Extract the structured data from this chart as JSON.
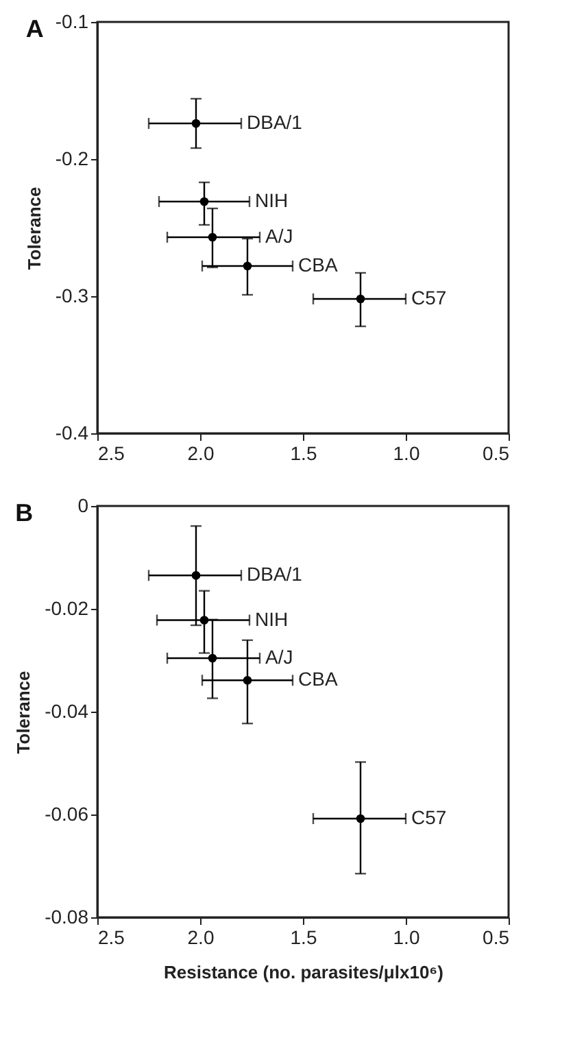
{
  "chart_data": [
    {
      "type": "scatter",
      "title": "A",
      "ylabel": "Tolerance",
      "x": [
        2.02,
        1.98,
        1.94,
        1.77,
        1.22
      ],
      "series": [
        {
          "color": "#000000",
          "values": [
            -0.174,
            -0.231,
            -0.257,
            -0.278,
            -0.302
          ],
          "errors": [
            [
              -0.192,
              -0.156
            ],
            [
              -0.248,
              -0.217
            ],
            [
              -0.279,
              -0.236
            ],
            [
              -0.299,
              -0.258
            ],
            [
              -0.322,
              -0.283
            ]
          ],
          "xerrors": [
            [
              1.8,
              2.25
            ],
            [
              1.76,
              2.2
            ],
            [
              1.71,
              2.16
            ],
            [
              1.55,
              1.99
            ],
            [
              1.0,
              1.45
            ]
          ]
        }
      ],
      "xlim": [
        2.5,
        0.5
      ],
      "xticks": [
        {
          "value": 2.5,
          "label": "2.5"
        },
        {
          "value": 2,
          "label": "2.0"
        },
        {
          "value": 1.5,
          "label": "1.5"
        },
        {
          "value": 1,
          "label": "1.0"
        },
        {
          "value": 0.5,
          "label": "0.5"
        }
      ],
      "ylim": [
        -0.4,
        -0.1
      ],
      "yticks": [
        -0.4,
        -0.3,
        -0.2,
        -0.1
      ],
      "grid": false,
      "marker": "circle",
      "annotations": [
        {
          "text": "DBA/1",
          "x": 1.8,
          "y": -0.174
        },
        {
          "text": "NIH",
          "x": 1.76,
          "y": -0.231
        },
        {
          "text": "A/J",
          "x": 1.71,
          "y": -0.257
        },
        {
          "text": "CBA",
          "x": 1.55,
          "y": -0.278
        },
        {
          "text": "C57",
          "x": 1.0,
          "y": -0.302
        }
      ]
    },
    {
      "type": "scatter",
      "title": "B",
      "ylabel": "Tolerance",
      "xlabel": "Resistance (no. parasites/μlx10⁶)",
      "x": [
        2.02,
        1.98,
        1.94,
        1.77,
        1.22
      ],
      "series": [
        {
          "color": "#000000",
          "values": [
            -0.0135,
            -0.0222,
            -0.0296,
            -0.0339,
            -0.0608
          ],
          "errors": [
            [
              -0.0232,
              -0.0039
            ],
            [
              -0.0286,
              -0.0165
            ],
            [
              -0.0374,
              -0.0221
            ],
            [
              -0.0423,
              -0.0261
            ],
            [
              -0.0715,
              -0.0498
            ]
          ],
          "xerrors": [
            [
              1.8,
              2.25
            ],
            [
              1.76,
              2.21
            ],
            [
              1.71,
              2.16
            ],
            [
              1.55,
              1.99
            ],
            [
              1.0,
              1.45
            ]
          ]
        }
      ],
      "xlim": [
        2.5,
        0.5
      ],
      "xticks": [
        {
          "value": 2.5,
          "label": "2.5"
        },
        {
          "value": 2,
          "label": "2.0"
        },
        {
          "value": 1.5,
          "label": "1.5"
        },
        {
          "value": 1,
          "label": "1.0"
        },
        {
          "value": 0.5,
          "label": "0.5"
        }
      ],
      "ylim": [
        -0.08,
        0
      ],
      "yticks": [
        -0.08,
        -0.06,
        -0.04,
        -0.02,
        0
      ],
      "grid": false,
      "marker": "circle",
      "annotations": [
        {
          "text": "DBA/1",
          "x": 1.8,
          "y": -0.0135
        },
        {
          "text": "NIH",
          "x": 1.76,
          "y": -0.0222
        },
        {
          "text": "A/J",
          "x": 1.71,
          "y": -0.0296
        },
        {
          "text": "CBA",
          "x": 1.55,
          "y": -0.0339
        },
        {
          "text": "C57",
          "x": 1.0,
          "y": -0.0608
        }
      ]
    }
  ]
}
